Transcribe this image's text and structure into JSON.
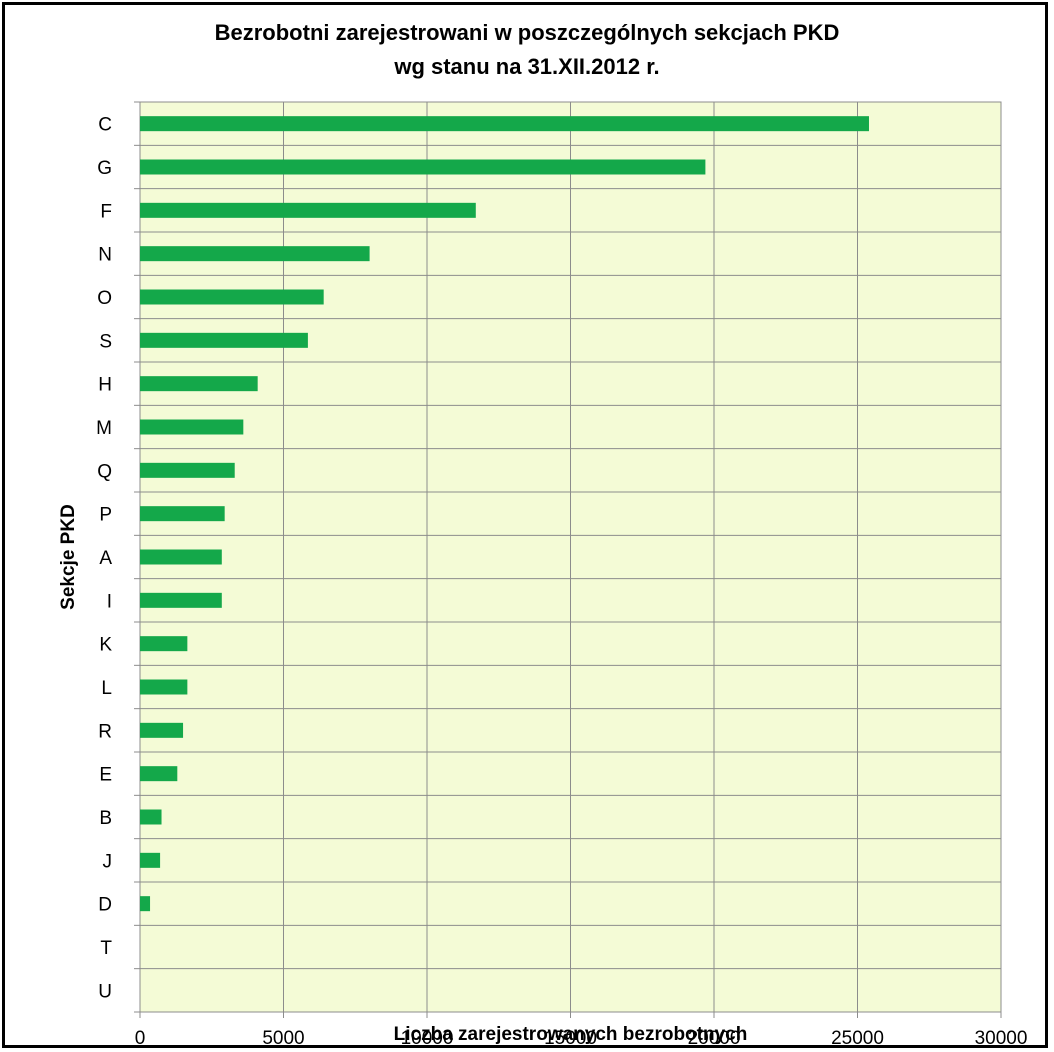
{
  "chart_data": {
    "type": "bar",
    "orientation": "horizontal",
    "title": "Bezrobotni zarejestrowani w poszczególnych sekcjach PKD",
    "subtitle": "wg stanu na 31.XII.2012 r.",
    "xlabel": "Liczba zarejestrowanych bezrobotnych",
    "ylabel": "Sekcje PKD",
    "xlim": [
      0,
      30000
    ],
    "xticks": [
      "0",
      "5000",
      "10000",
      "15000",
      "20000",
      "25000",
      "30000"
    ],
    "grid": true,
    "categories": [
      "C",
      "G",
      "F",
      "N",
      "O",
      "S",
      "H",
      "M",
      "Q",
      "P",
      "A",
      "I",
      "K",
      "L",
      "R",
      "E",
      "B",
      "J",
      "D",
      "T",
      "U"
    ],
    "values": [
      25400,
      19700,
      11700,
      8000,
      6400,
      5850,
      4100,
      3600,
      3300,
      2950,
      2850,
      2850,
      1650,
      1650,
      1500,
      1300,
      750,
      700,
      350,
      0,
      0
    ],
    "colors": {
      "bar": "#14a84a",
      "plot_background": "#f4fbd6",
      "grid": "#8c8c8c"
    }
  }
}
